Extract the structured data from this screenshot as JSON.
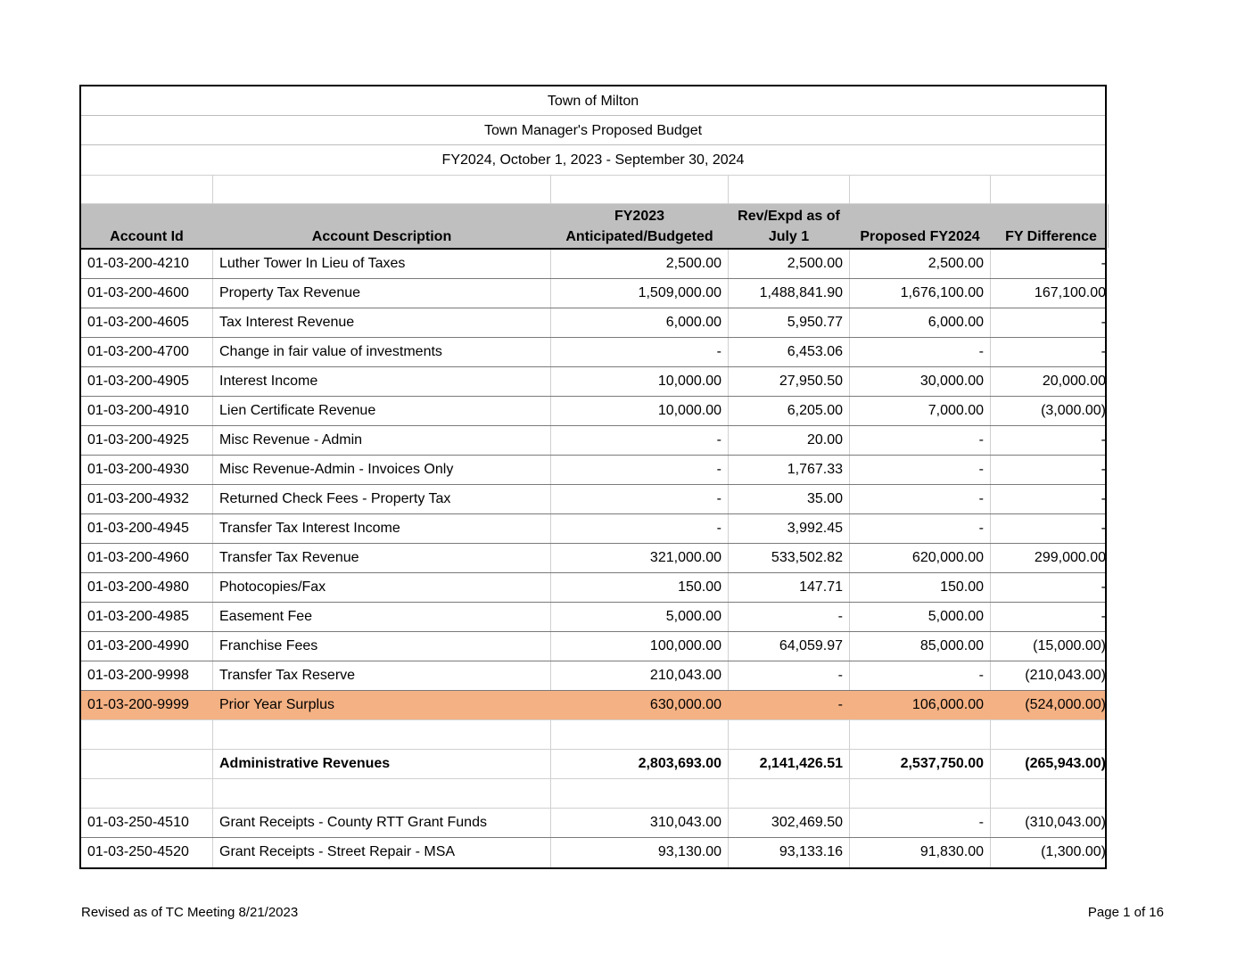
{
  "header": {
    "title1": "Town of Milton",
    "title2": "Town Manager's Proposed Budget",
    "title3": "FY2024, October 1, 2023 - September 30, 2024"
  },
  "columns": {
    "c1": "Account Id",
    "c2": "Account Description",
    "c3a": "FY2023",
    "c3b": "Anticipated/Budgeted",
    "c4a": "Rev/Expd as of",
    "c4b": "July 1",
    "c5": "Proposed FY2024",
    "c6": "FY Difference"
  },
  "rows": [
    {
      "id": "01-03-200-4210",
      "desc": "Luther Tower In Lieu of Taxes",
      "fy2023": "2,500.00",
      "rev": "2,500.00",
      "proposed": "2,500.00",
      "diff": "-"
    },
    {
      "id": "01-03-200-4600",
      "desc": "Property Tax Revenue",
      "fy2023": "1,509,000.00",
      "rev": "1,488,841.90",
      "proposed": "1,676,100.00",
      "diff": "167,100.00"
    },
    {
      "id": "01-03-200-4605",
      "desc": "Tax Interest Revenue",
      "fy2023": "6,000.00",
      "rev": "5,950.77",
      "proposed": "6,000.00",
      "diff": "-"
    },
    {
      "id": "01-03-200-4700",
      "desc": "Change in fair value of investments",
      "fy2023": "-",
      "rev": "6,453.06",
      "proposed": "-",
      "diff": "-"
    },
    {
      "id": "01-03-200-4905",
      "desc": "Interest Income",
      "fy2023": "10,000.00",
      "rev": "27,950.50",
      "proposed": "30,000.00",
      "diff": "20,000.00"
    },
    {
      "id": "01-03-200-4910",
      "desc": "Lien Certificate Revenue",
      "fy2023": "10,000.00",
      "rev": "6,205.00",
      "proposed": "7,000.00",
      "diff": "(3,000.00)"
    },
    {
      "id": "01-03-200-4925",
      "desc": "Misc Revenue - Admin",
      "fy2023": "-",
      "rev": "20.00",
      "proposed": "-",
      "diff": "-"
    },
    {
      "id": "01-03-200-4930",
      "desc": "Misc Revenue-Admin - Invoices Only",
      "fy2023": "-",
      "rev": "1,767.33",
      "proposed": "-",
      "diff": "-"
    },
    {
      "id": "01-03-200-4932",
      "desc": "Returned Check Fees - Property Tax",
      "fy2023": "-",
      "rev": "35.00",
      "proposed": "-",
      "diff": "-"
    },
    {
      "id": "01-03-200-4945",
      "desc": "Transfer Tax Interest Income",
      "fy2023": "-",
      "rev": "3,992.45",
      "proposed": "-",
      "diff": "-"
    },
    {
      "id": "01-03-200-4960",
      "desc": "Transfer Tax Revenue",
      "fy2023": "321,000.00",
      "rev": "533,502.82",
      "proposed": "620,000.00",
      "diff": "299,000.00"
    },
    {
      "id": "01-03-200-4980",
      "desc": "Photocopies/Fax",
      "fy2023": "150.00",
      "rev": "147.71",
      "proposed": "150.00",
      "diff": "-"
    },
    {
      "id": "01-03-200-4985",
      "desc": "Easement Fee",
      "fy2023": "5,000.00",
      "rev": "-",
      "proposed": "5,000.00",
      "diff": "-"
    },
    {
      "id": "01-03-200-4990",
      "desc": "Franchise Fees",
      "fy2023": "100,000.00",
      "rev": "64,059.97",
      "proposed": "85,000.00",
      "diff": "(15,000.00)"
    },
    {
      "id": "01-03-200-9998",
      "desc": "Transfer Tax Reserve",
      "fy2023": "210,043.00",
      "rev": "-",
      "proposed": "-",
      "diff": "(210,043.00)"
    },
    {
      "id": "01-03-200-9999",
      "desc": "Prior Year Surplus",
      "fy2023": "630,000.00",
      "rev": "-",
      "proposed": "106,000.00",
      "diff": "(524,000.00)"
    }
  ],
  "total": {
    "desc": "Administrative Revenues",
    "fy2023": "2,803,693.00",
    "rev": "2,141,426.51",
    "proposed": "2,537,750.00",
    "diff": "(265,943.00)"
  },
  "rows2": [
    {
      "id": "01-03-250-4510",
      "desc": "Grant Receipts - County RTT Grant Funds",
      "fy2023": "310,043.00",
      "rev": "302,469.50",
      "proposed": "-",
      "diff": "(310,043.00)"
    },
    {
      "id": "01-03-250-4520",
      "desc": "Grant Receipts - Street Repair - MSA",
      "fy2023": "93,130.00",
      "rev": "93,133.16",
      "proposed": "91,830.00",
      "diff": "(1,300.00)"
    }
  ],
  "footer": {
    "left": "Revised as of TC Meeting 8/21/2023",
    "right": "Page 1 of 16"
  }
}
